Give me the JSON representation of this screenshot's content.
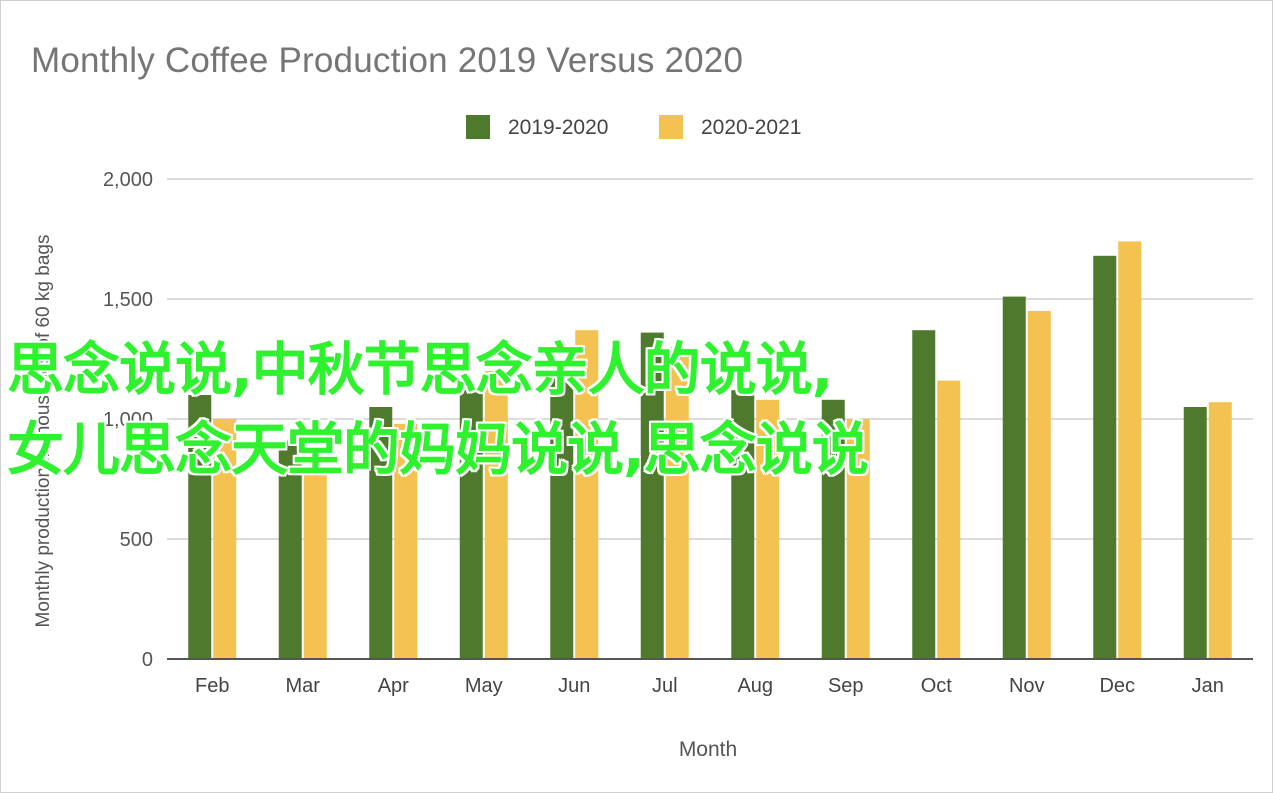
{
  "chart_data": {
    "type": "bar",
    "title": "Monthly Coffee Production 2019 Versus 2020",
    "xlabel": "Month",
    "ylabel": "Monthly production in thousands of 60 kg bags",
    "ylim": [
      0,
      2000
    ],
    "yticks": [
      {
        "value": 0,
        "label": "0"
      },
      {
        "value": 500,
        "label": "500"
      },
      {
        "value": 1000,
        "label": "1,000"
      },
      {
        "value": 1500,
        "label": "1,500"
      },
      {
        "value": 2000,
        "label": "2,000"
      }
    ],
    "grid": true,
    "legend_position": "top-center",
    "categories": [
      "Feb",
      "Mar",
      "Apr",
      "May",
      "Jun",
      "Jul",
      "Aug",
      "Sep",
      "Oct",
      "Nov",
      "Dec",
      "Jan"
    ],
    "series": [
      {
        "name": "2019-2020",
        "color": "#4f7a2e",
        "values": [
          1100,
          910,
          1050,
          1120,
          1250,
          1360,
          1120,
          1080,
          1370,
          1510,
          1680,
          1050
        ]
      },
      {
        "name": "2020-2021",
        "color": "#f3c250",
        "values": [
          1000,
          800,
          980,
          1200,
          1370,
          1300,
          1080,
          1000,
          1160,
          1450,
          1740,
          1070
        ]
      }
    ]
  },
  "overlay": {
    "line1": "思念说说,中秋节思念亲人的说说,",
    "line2": "女儿思念天堂的妈妈说说,思念说说",
    "color": "#2ef22e"
  }
}
